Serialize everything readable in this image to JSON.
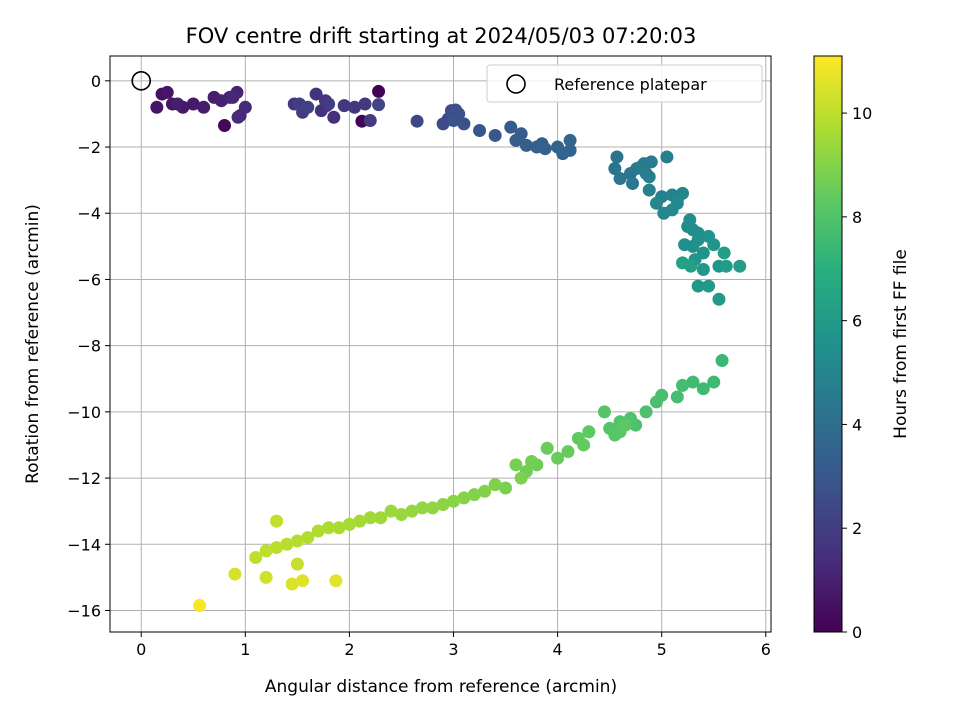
{
  "chart_data": {
    "type": "scatter",
    "title": "FOV centre drift starting at 2024/05/03 07:20:03",
    "xlabel": "Angular distance from reference (arcmin)",
    "ylabel": "Rotation from reference (arcmin)",
    "xlim": [
      -0.3,
      6.05
    ],
    "ylim": [
      -16.65,
      0.75
    ],
    "xticks": [
      0,
      1,
      2,
      3,
      4,
      5,
      6
    ],
    "yticks": [
      0,
      -2,
      -4,
      -6,
      -8,
      -10,
      -12,
      -14,
      -16
    ],
    "xtick_labels": [
      "0",
      "1",
      "2",
      "3",
      "4",
      "5",
      "6"
    ],
    "ytick_labels": [
      "0",
      "−2",
      "−4",
      "−6",
      "−8",
      "−10",
      "−12",
      "−14",
      "−16"
    ],
    "grid": true,
    "legend": {
      "position": "top-right",
      "entries": [
        "Reference platepar"
      ]
    },
    "reference_point": {
      "x": 0,
      "y": 0
    },
    "colorbar": {
      "label": "Hours from first FF file",
      "range": [
        0,
        11.1
      ],
      "ticks": [
        0,
        2,
        4,
        6,
        8,
        10
      ],
      "tick_labels": [
        "0",
        "2",
        "4",
        "6",
        "8",
        "10"
      ],
      "colormap": "viridis"
    },
    "points": [
      [
        2.28,
        -0.32,
        0.02
      ],
      [
        2.12,
        -1.22,
        0.1
      ],
      [
        0.8,
        -1.35,
        0.2
      ],
      [
        0.2,
        -0.4,
        0.5
      ],
      [
        0.3,
        -0.7,
        0.6
      ],
      [
        0.15,
        -0.8,
        0.65
      ],
      [
        0.25,
        -0.35,
        0.7
      ],
      [
        0.4,
        -0.8,
        0.75
      ],
      [
        0.5,
        -0.7,
        0.8
      ],
      [
        0.6,
        -0.8,
        0.85
      ],
      [
        0.35,
        -0.7,
        0.9
      ],
      [
        0.7,
        -0.5,
        0.95
      ],
      [
        0.77,
        -0.6,
        1.0
      ],
      [
        0.85,
        -0.5,
        1.05
      ],
      [
        0.92,
        -0.35,
        1.1
      ],
      [
        0.95,
        -1.05,
        1.15
      ],
      [
        0.88,
        -0.5,
        1.2
      ],
      [
        1.0,
        -0.8,
        1.25
      ],
      [
        0.93,
        -1.1,
        1.3
      ],
      [
        1.78,
        -0.75,
        1.4
      ],
      [
        1.85,
        -1.1,
        1.5
      ],
      [
        1.73,
        -0.9,
        1.55
      ],
      [
        1.68,
        -0.4,
        1.6
      ],
      [
        1.77,
        -0.6,
        1.65
      ],
      [
        1.47,
        -0.7,
        1.7
      ],
      [
        1.95,
        -0.75,
        1.75
      ],
      [
        2.05,
        -0.8,
        1.8
      ],
      [
        2.15,
        -0.7,
        1.85
      ],
      [
        2.2,
        -1.2,
        1.9
      ],
      [
        1.8,
        -0.7,
        1.95
      ],
      [
        1.55,
        -0.95,
        2.0
      ],
      [
        1.52,
        -0.7,
        2.05
      ],
      [
        1.6,
        -0.8,
        2.1
      ],
      [
        2.28,
        -0.72,
        2.2
      ],
      [
        2.65,
        -1.22,
        2.35
      ],
      [
        2.9,
        -1.3,
        2.5
      ],
      [
        2.95,
        -1.15,
        2.55
      ],
      [
        2.98,
        -0.9,
        2.6
      ],
      [
        3.05,
        -1.0,
        2.65
      ],
      [
        3.02,
        -0.88,
        2.7
      ],
      [
        3.1,
        -1.3,
        2.75
      ],
      [
        3.0,
        -1.2,
        2.8
      ],
      [
        3.25,
        -1.5,
        2.95
      ],
      [
        3.4,
        -1.65,
        3.05
      ],
      [
        3.55,
        -1.4,
        3.15
      ],
      [
        3.65,
        -1.6,
        3.2
      ],
      [
        3.6,
        -1.8,
        3.25
      ],
      [
        3.7,
        -1.95,
        3.3
      ],
      [
        3.8,
        -2.0,
        3.35
      ],
      [
        3.85,
        -1.9,
        3.4
      ],
      [
        3.88,
        -2.05,
        3.45
      ],
      [
        4.0,
        -2.0,
        3.5
      ],
      [
        4.05,
        -2.2,
        3.55
      ],
      [
        4.12,
        -2.1,
        3.6
      ],
      [
        4.12,
        -1.8,
        3.65
      ],
      [
        4.57,
        -2.3,
        4.2
      ],
      [
        4.55,
        -2.65,
        4.25
      ],
      [
        4.6,
        -2.95,
        4.3
      ],
      [
        4.7,
        -2.8,
        4.35
      ],
      [
        4.72,
        -3.1,
        4.4
      ],
      [
        4.76,
        -2.65,
        4.45
      ],
      [
        4.83,
        -2.5,
        4.5
      ],
      [
        4.85,
        -2.8,
        4.55
      ],
      [
        4.9,
        -2.45,
        4.6
      ],
      [
        4.8,
        -2.6,
        4.65
      ],
      [
        4.88,
        -2.9,
        4.7
      ],
      [
        5.05,
        -2.3,
        4.75
      ],
      [
        4.88,
        -3.3,
        4.8
      ],
      [
        5.0,
        -3.5,
        4.85
      ],
      [
        5.1,
        -3.45,
        4.9
      ],
      [
        5.15,
        -3.6,
        4.95
      ],
      [
        5.2,
        -3.4,
        5.0
      ],
      [
        4.95,
        -3.7,
        5.05
      ],
      [
        5.02,
        -4.0,
        5.1
      ],
      [
        5.1,
        -3.9,
        5.15
      ],
      [
        5.15,
        -3.7,
        5.2
      ],
      [
        5.25,
        -4.4,
        5.25
      ],
      [
        5.3,
        -4.5,
        5.3
      ],
      [
        5.35,
        -4.6,
        5.35
      ],
      [
        5.27,
        -4.2,
        5.4
      ],
      [
        5.22,
        -4.95,
        5.45
      ],
      [
        5.3,
        -5.0,
        5.5
      ],
      [
        5.35,
        -4.8,
        5.55
      ],
      [
        5.45,
        -4.7,
        5.6
      ],
      [
        5.4,
        -5.2,
        5.65
      ],
      [
        5.5,
        -4.95,
        5.7
      ],
      [
        5.55,
        -5.6,
        5.75
      ],
      [
        5.32,
        -5.4,
        5.8
      ],
      [
        5.4,
        -5.7,
        5.85
      ],
      [
        5.35,
        -6.2,
        5.9
      ],
      [
        5.45,
        -6.2,
        5.95
      ],
      [
        5.55,
        -6.6,
        6.0
      ],
      [
        5.62,
        -5.6,
        6.05
      ],
      [
        5.75,
        -5.6,
        6.1
      ],
      [
        5.6,
        -5.2,
        6.15
      ],
      [
        5.28,
        -5.6,
        6.2
      ],
      [
        5.2,
        -5.5,
        6.25
      ],
      [
        5.58,
        -8.45,
        7.4
      ],
      [
        5.5,
        -9.1,
        7.5
      ],
      [
        5.4,
        -9.3,
        7.55
      ],
      [
        5.3,
        -9.1,
        7.6
      ],
      [
        5.2,
        -9.2,
        7.65
      ],
      [
        5.15,
        -9.55,
        7.7
      ],
      [
        5.0,
        -9.5,
        7.75
      ],
      [
        4.95,
        -9.7,
        7.8
      ],
      [
        4.85,
        -10.0,
        7.85
      ],
      [
        4.75,
        -10.4,
        7.9
      ],
      [
        4.7,
        -10.2,
        7.95
      ],
      [
        4.6,
        -10.3,
        8.0
      ],
      [
        4.5,
        -10.5,
        8.05
      ],
      [
        4.45,
        -10.0,
        8.1
      ],
      [
        4.55,
        -10.7,
        8.15
      ],
      [
        4.6,
        -10.6,
        8.2
      ],
      [
        4.65,
        -10.4,
        8.25
      ],
      [
        4.3,
        -10.6,
        8.3
      ],
      [
        4.2,
        -10.8,
        8.35
      ],
      [
        4.25,
        -11.0,
        8.4
      ],
      [
        4.1,
        -11.2,
        8.45
      ],
      [
        4.0,
        -11.4,
        8.5
      ],
      [
        3.9,
        -11.1,
        8.55
      ],
      [
        3.8,
        -11.6,
        8.6
      ],
      [
        3.7,
        -11.8,
        8.65
      ],
      [
        3.75,
        -11.5,
        8.7
      ],
      [
        3.6,
        -11.6,
        8.75
      ],
      [
        3.65,
        -12.0,
        8.8
      ],
      [
        3.5,
        -12.3,
        8.85
      ],
      [
        3.4,
        -12.2,
        8.9
      ],
      [
        3.3,
        -12.4,
        8.95
      ],
      [
        3.2,
        -12.5,
        9.0
      ],
      [
        3.1,
        -12.6,
        9.05
      ],
      [
        3.0,
        -12.7,
        9.1
      ],
      [
        2.9,
        -12.8,
        9.15
      ],
      [
        2.8,
        -12.9,
        9.2
      ],
      [
        2.7,
        -12.9,
        9.25
      ],
      [
        2.6,
        -13.0,
        9.3
      ],
      [
        2.5,
        -13.1,
        9.35
      ],
      [
        2.4,
        -13.0,
        9.4
      ],
      [
        2.3,
        -13.2,
        9.45
      ],
      [
        2.2,
        -13.2,
        9.5
      ],
      [
        2.1,
        -13.3,
        9.55
      ],
      [
        2.0,
        -13.4,
        9.6
      ],
      [
        1.9,
        -13.5,
        9.65
      ],
      [
        1.8,
        -13.5,
        9.7
      ],
      [
        1.7,
        -13.6,
        9.75
      ],
      [
        1.6,
        -13.8,
        9.8
      ],
      [
        1.5,
        -13.9,
        9.85
      ],
      [
        1.4,
        -14.0,
        9.9
      ],
      [
        1.3,
        -14.1,
        9.95
      ],
      [
        1.2,
        -14.2,
        10.0
      ],
      [
        1.1,
        -14.4,
        10.05
      ],
      [
        1.3,
        -13.3,
        10.1
      ],
      [
        1.5,
        -14.6,
        10.15
      ],
      [
        1.2,
        -15.0,
        10.3
      ],
      [
        0.9,
        -14.9,
        10.4
      ],
      [
        1.45,
        -15.2,
        10.5
      ],
      [
        1.55,
        -15.1,
        10.55
      ],
      [
        1.87,
        -15.1,
        10.6
      ],
      [
        0.56,
        -15.85,
        11.0
      ]
    ]
  }
}
